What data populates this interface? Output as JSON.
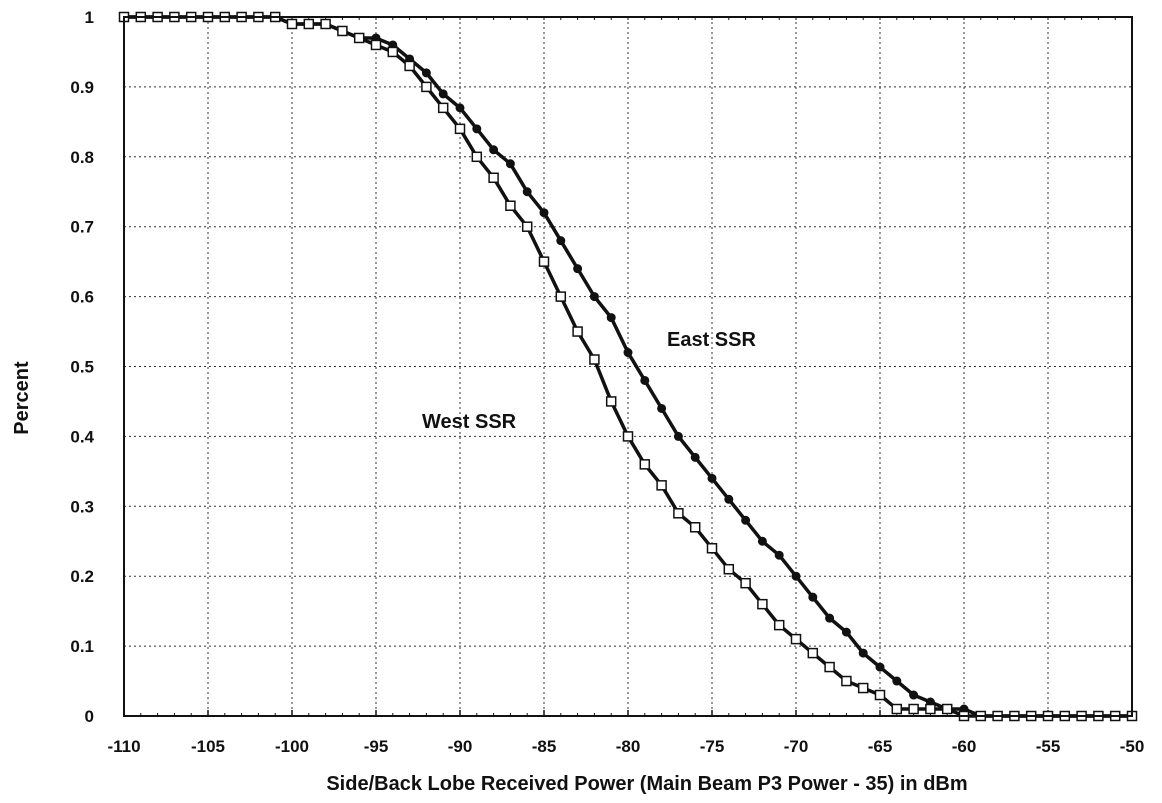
{
  "chart_data": {
    "type": "line",
    "title": "",
    "xlabel": "Side/Back Lobe Received Power (Main Beam P3 Power - 35)  in dBm",
    "ylabel": "Percent",
    "xlim": [
      -110,
      -50
    ],
    "ylim": [
      0,
      1
    ],
    "xticks": [
      -110,
      -105,
      -100,
      -95,
      -90,
      -85,
      -80,
      -75,
      -70,
      -65,
      -60,
      -55,
      -50
    ],
    "xtick_labels": [
      "-110",
      "-105",
      "-100",
      "-95",
      "-90",
      "-85",
      "-80",
      "-75",
      "-70",
      "-65",
      "-60",
      "-55",
      "-50"
    ],
    "yticks": [
      0,
      0.1,
      0.2,
      0.3,
      0.4,
      0.5,
      0.6,
      0.7,
      0.8,
      0.9,
      1
    ],
    "ytick_labels": [
      "0",
      "0.1",
      "0.2",
      "0.3",
      "0.4",
      "0.5",
      "0.6",
      "0.7",
      "0.8",
      "0.9",
      "1"
    ],
    "grid": true,
    "legend": "none",
    "annotations": [
      {
        "text": "East SSR",
        "x": -78,
        "y": 0.53
      },
      {
        "text": "West SSR",
        "x": -88,
        "y": 0.42
      }
    ],
    "series": [
      {
        "label": "East SSR",
        "marker": "filled-circle",
        "x": [
          -110,
          -109,
          -108,
          -107,
          -106,
          -105,
          -104,
          -103,
          -102,
          -101,
          -100,
          -99,
          -98,
          -97,
          -96,
          -95,
          -94,
          -93,
          -92,
          -91,
          -90,
          -89,
          -88,
          -87,
          -86,
          -85,
          -84,
          -83,
          -82,
          -81,
          -80,
          -79,
          -78,
          -77,
          -76,
          -75,
          -74,
          -73,
          -72,
          -71,
          -70,
          -69,
          -68,
          -67,
          -66,
          -65,
          -64,
          -63,
          -62,
          -61,
          -60,
          -59,
          -58,
          -57,
          -56,
          -55,
          -54,
          -53,
          -52,
          -51,
          -50
        ],
        "y": [
          1,
          1,
          1,
          1,
          1,
          1,
          1,
          1,
          1,
          1,
          0.99,
          0.99,
          0.99,
          0.98,
          0.97,
          0.97,
          0.96,
          0.94,
          0.92,
          0.89,
          0.87,
          0.84,
          0.81,
          0.79,
          0.75,
          0.72,
          0.68,
          0.64,
          0.6,
          0.57,
          0.52,
          0.48,
          0.44,
          0.4,
          0.37,
          0.34,
          0.31,
          0.28,
          0.25,
          0.23,
          0.2,
          0.17,
          0.14,
          0.12,
          0.09,
          0.07,
          0.05,
          0.03,
          0.02,
          0.01,
          0.01,
          0,
          0,
          0,
          0,
          0,
          0,
          0,
          0,
          0,
          0
        ]
      },
      {
        "label": "West SSR",
        "marker": "open-square",
        "x": [
          -110,
          -109,
          -108,
          -107,
          -106,
          -105,
          -104,
          -103,
          -102,
          -101,
          -100,
          -99,
          -98,
          -97,
          -96,
          -95,
          -94,
          -93,
          -92,
          -91,
          -90,
          -89,
          -88,
          -87,
          -86,
          -85,
          -84,
          -83,
          -82,
          -81,
          -80,
          -79,
          -78,
          -77,
          -76,
          -75,
          -74,
          -73,
          -72,
          -71,
          -70,
          -69,
          -68,
          -67,
          -66,
          -65,
          -64,
          -63,
          -62,
          -61,
          -60,
          -59,
          -58,
          -57,
          -56,
          -55,
          -54,
          -53,
          -52,
          -51,
          -50
        ],
        "y": [
          1,
          1,
          1,
          1,
          1,
          1,
          1,
          1,
          1,
          1,
          0.99,
          0.99,
          0.99,
          0.98,
          0.97,
          0.96,
          0.95,
          0.93,
          0.9,
          0.87,
          0.84,
          0.8,
          0.77,
          0.73,
          0.7,
          0.65,
          0.6,
          0.55,
          0.51,
          0.45,
          0.4,
          0.36,
          0.33,
          0.29,
          0.27,
          0.24,
          0.21,
          0.19,
          0.16,
          0.13,
          0.11,
          0.09,
          0.07,
          0.05,
          0.04,
          0.03,
          0.01,
          0.01,
          0.01,
          0.01,
          0,
          0,
          0,
          0,
          0,
          0,
          0,
          0,
          0,
          0,
          0
        ]
      }
    ]
  }
}
